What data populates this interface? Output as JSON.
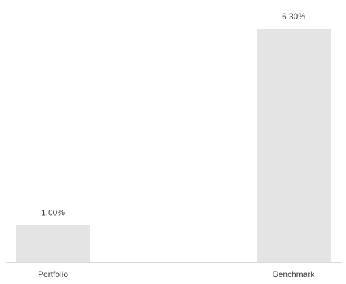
{
  "chart_data": {
    "type": "bar",
    "categories": [
      "Portfolio",
      "Benchmark"
    ],
    "values": [
      1.0,
      6.3
    ],
    "data_labels": [
      "1.00%",
      "6.30%"
    ],
    "title": "",
    "xlabel": "",
    "ylabel": "",
    "ylim": [
      0,
      7
    ],
    "grid": false,
    "legend": "none",
    "colors": {
      "bar": "#e4e4e4",
      "axis": "#d9d9d9",
      "text": "#404040"
    }
  }
}
